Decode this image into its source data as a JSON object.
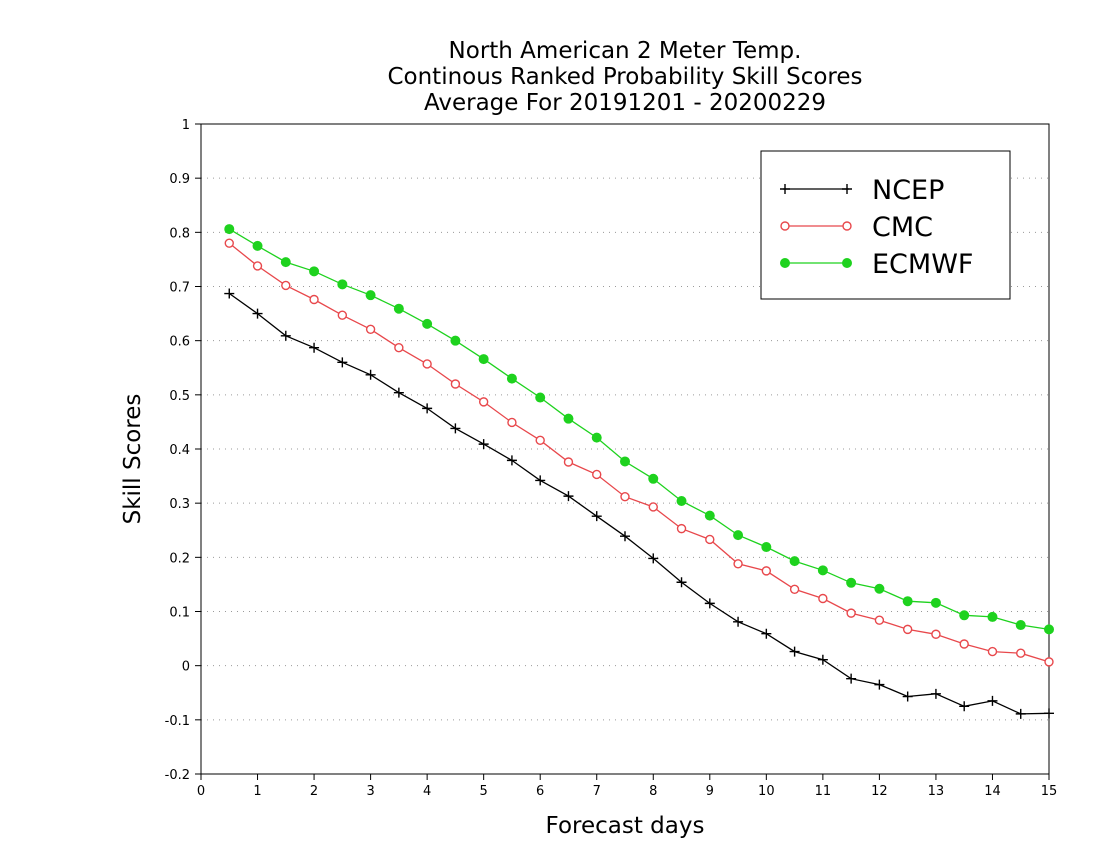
{
  "chart_data": {
    "type": "line",
    "title_lines": [
      "North American 2 Meter Temp.",
      "Continous Ranked Probability Skill Scores",
      "Average For 20191201 - 20200229"
    ],
    "xlabel": "Forecast days",
    "ylabel": "Skill Scores",
    "xlim": [
      0,
      15
    ],
    "ylim": [
      -0.2,
      1
    ],
    "x_ticks": [
      "0",
      "1",
      "2",
      "3",
      "4",
      "5",
      "6",
      "7",
      "8",
      "9",
      "10",
      "11",
      "12",
      "13",
      "14",
      "15"
    ],
    "y_ticks": [
      "-0.2",
      "-0.1",
      "0",
      "0.1",
      "0.2",
      "0.3",
      "0.4",
      "0.5",
      "0.6",
      "0.7",
      "0.8",
      "0.9",
      "1"
    ],
    "grid": true,
    "legend_position": "top-right",
    "x": [
      0.5,
      1,
      1.5,
      2,
      2.5,
      3,
      3.5,
      4,
      4.5,
      5,
      5.5,
      6,
      6.5,
      7,
      7.5,
      8,
      8.5,
      9,
      9.5,
      10,
      10.5,
      11,
      11.5,
      12,
      12.5,
      13,
      13.5,
      14,
      14.5,
      15
    ],
    "series": [
      {
        "name": "NCEP",
        "color": "#000000",
        "marker": "plus",
        "values": [
          0.687,
          0.65,
          0.609,
          0.587,
          0.56,
          0.537,
          0.504,
          0.475,
          0.438,
          0.409,
          0.379,
          0.342,
          0.313,
          0.276,
          0.239,
          0.198,
          0.154,
          0.115,
          0.081,
          0.059,
          0.026,
          0.011,
          -0.024,
          -0.035,
          -0.057,
          -0.052,
          -0.075,
          -0.065,
          -0.089,
          -0.088
        ]
      },
      {
        "name": "CMC",
        "color": "#e8484c",
        "marker": "open-circle",
        "values": [
          0.78,
          0.738,
          0.702,
          0.676,
          0.647,
          0.621,
          0.587,
          0.557,
          0.52,
          0.487,
          0.449,
          0.416,
          0.376,
          0.353,
          0.312,
          0.293,
          0.253,
          0.233,
          0.188,
          0.175,
          0.141,
          0.124,
          0.097,
          0.084,
          0.067,
          0.058,
          0.04,
          0.026,
          0.023,
          0.007
        ]
      },
      {
        "name": "ECMWF",
        "color": "#1ed21e",
        "marker": "filled-circle",
        "values": [
          0.806,
          0.775,
          0.745,
          0.728,
          0.704,
          0.684,
          0.659,
          0.631,
          0.6,
          0.566,
          0.53,
          0.495,
          0.456,
          0.421,
          0.377,
          0.345,
          0.304,
          0.277,
          0.241,
          0.219,
          0.193,
          0.176,
          0.153,
          0.142,
          0.119,
          0.116,
          0.093,
          0.09,
          0.075,
          0.067
        ]
      }
    ]
  }
}
